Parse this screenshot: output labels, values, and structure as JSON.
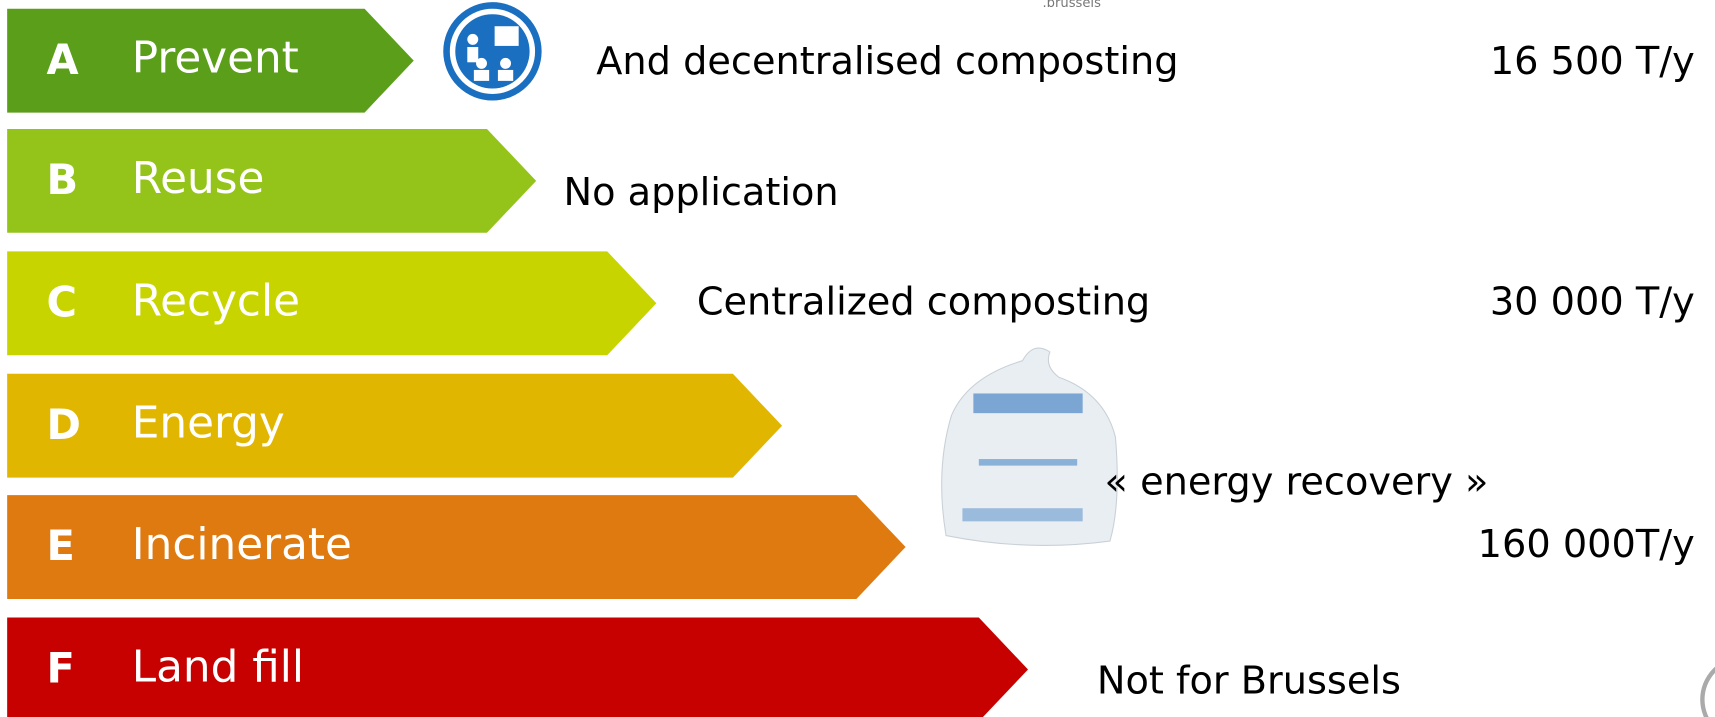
{
  "logo_text": ".brussels",
  "levels": [
    {
      "letter": "A",
      "label": "Prevent"
    },
    {
      "letter": "B",
      "label": "Reuse"
    },
    {
      "letter": "C",
      "label": "Recycle"
    },
    {
      "letter": "D",
      "label": "Energy"
    },
    {
      "letter": "E",
      "label": "Incinerate"
    },
    {
      "letter": "F",
      "label": "Land fill"
    }
  ],
  "notes": {
    "prevent": "And decentralised composting",
    "prevent_amount": "16 500 T/y",
    "reuse": "No application",
    "recycle": "Centralized composting",
    "recycle_amount": "30 000 T/y",
    "energy": "« energy recovery »",
    "energy_amount": "160 000T/y",
    "landfill": "Not for Brussels"
  }
}
